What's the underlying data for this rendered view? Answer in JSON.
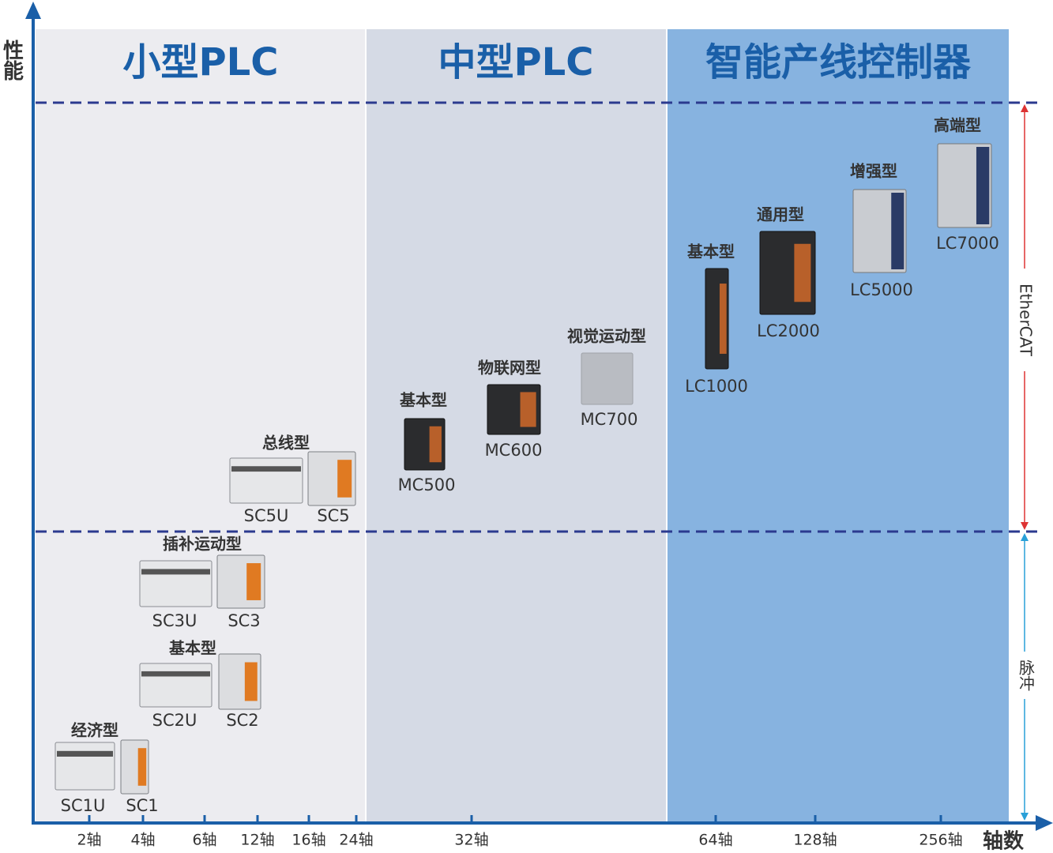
{
  "y_axis_label": "性能",
  "x_axis_label": "轴数",
  "sections": [
    {
      "title": "小型PLC"
    },
    {
      "title": "中型PLC"
    },
    {
      "title": "智能产线控制器"
    }
  ],
  "x_ticks": [
    "2轴",
    "4轴",
    "6轴",
    "12轴",
    "16轴",
    "24轴",
    "32轴",
    "64轴",
    "128轴",
    "256轴"
  ],
  "side_labels": {
    "upper": "EtherCAT",
    "lower": "脉冲"
  },
  "groups": [
    {
      "label": "经济型",
      "products": [
        "SC1U",
        "SC1"
      ]
    },
    {
      "label": "基本型",
      "products": [
        "SC2U",
        "SC2"
      ]
    },
    {
      "label": "插补运动型",
      "products": [
        "SC3U",
        "SC3"
      ]
    },
    {
      "label": "总线型",
      "products": [
        "SC5U",
        "SC5"
      ]
    },
    {
      "label": "基本型",
      "products": [
        "MC500"
      ]
    },
    {
      "label": "物联网型",
      "products": [
        "MC600"
      ]
    },
    {
      "label": "视觉运动型",
      "products": [
        "MC700"
      ]
    },
    {
      "label": "基本型",
      "products": [
        "LC1000"
      ]
    },
    {
      "label": "通用型",
      "products": [
        "LC2000"
      ]
    },
    {
      "label": "增强型",
      "products": [
        "LC5000"
      ]
    },
    {
      "label": "高端型",
      "products": [
        "LC7000"
      ]
    }
  ]
}
